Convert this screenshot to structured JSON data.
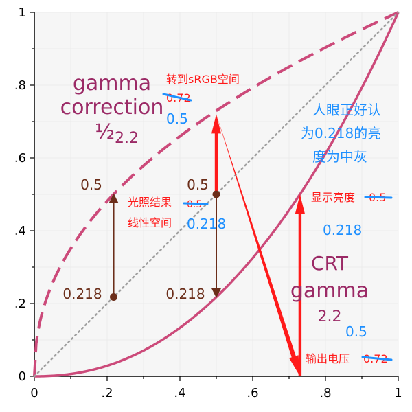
{
  "chart_data": {
    "type": "line",
    "xlim": [
      0,
      1
    ],
    "ylim": [
      0,
      1
    ],
    "xticks": [
      "0",
      ".2",
      ".4",
      ".6",
      ".8",
      "1"
    ],
    "yticks": [
      "0",
      ".2",
      ".4",
      ".6",
      ".8",
      "1"
    ],
    "grid": true,
    "series": [
      {
        "key": "encode",
        "style": "dashed",
        "gamma_exponent": 0.4545,
        "color": "#cc4a7a"
      },
      {
        "key": "decode",
        "style": "solid",
        "gamma_exponent": 2.2,
        "color": "#cc4a7a"
      },
      {
        "key": "identity",
        "style": "dotted",
        "color": "#a0a0a0"
      }
    ],
    "points": [
      {
        "x": 0.218,
        "y": 0.218
      },
      {
        "x": 0.5,
        "y": 0.5
      }
    ],
    "vertical_arrows": [
      {
        "x": 0.218,
        "from": 0.218,
        "to": 0.5,
        "color": "#6b2e1a"
      },
      {
        "x": 0.5,
        "from": 0.5,
        "to": 0.218,
        "color": "#6b2e1a"
      },
      {
        "x": 0.5,
        "from": 0.5,
        "to": 0.72,
        "color": "#ff1a1a"
      },
      {
        "x": 0.73,
        "from": 0.0,
        "to": 0.5,
        "color": "#ff1a1a"
      }
    ],
    "diagonal_arrow": {
      "from": [
        0.5,
        0.72
      ],
      "to": [
        0.73,
        0.0
      ],
      "color": "#ff1a1a"
    }
  },
  "colors": {
    "curve": "#cc4a7a",
    "curve_text": "#9b2a66",
    "arrow_brown": "#6b2e1a",
    "arrow_red": "#ff1a1a",
    "blue_text": "#1e90ff",
    "grid": "#ececec",
    "plot_bg": "#f6f6f6"
  },
  "annotations": {
    "gamma_correction_1": "gamma",
    "gamma_correction_2": "correction",
    "gamma_correction_3": "½",
    "gamma_correction_4": "2.2",
    "crt_1": "CRT",
    "crt_2": "gamma",
    "crt_3": "2.2",
    "left_top_value": "0.5",
    "left_bottom_value": "0.218",
    "mid_top_value": "0.5",
    "mid_bottom_value": "0.218",
    "to_srgb_label": "转到sRGB空间",
    "to_srgb_old": "0.72",
    "to_srgb_new": "0.5",
    "linear_label_1": "光照结果",
    "linear_label_2": "线性空间",
    "linear_old": "0.5",
    "linear_new": "0.218",
    "perceive_1": "人眼正好认",
    "perceive_2": "为0.218的亮",
    "perceive_3": "度为中灰",
    "display_label": "显示亮度",
    "display_old": "0.5",
    "display_new": "0.218",
    "voltage_label": "输出电压",
    "voltage_old": "0.72",
    "voltage_new": "0.5"
  }
}
